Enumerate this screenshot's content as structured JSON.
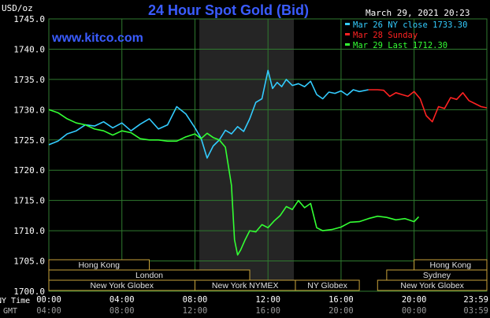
{
  "header": {
    "units": "USD/oz",
    "title": "24 Hour Spot Gold (Bid)",
    "date": "March 29, 2021 20:23",
    "website": "www.kitco.com"
  },
  "legend": [
    {
      "label": "Mar 26 NY close 1733.30",
      "color": "#33ccff"
    },
    {
      "label": "Mar 28 Sunday",
      "color": "#ff2222"
    },
    {
      "label": "Mar 29 Last 1712.30",
      "color": "#33ff33"
    }
  ],
  "markets": {
    "row1": [
      "Hong Kong",
      "Hong Kong"
    ],
    "row2": [
      "London",
      "Sydney"
    ],
    "row3": [
      "New York Globex",
      "New York NYMEX",
      "NY Globex",
      "New York Globex"
    ]
  },
  "time_axes": {
    "ny_label": "NY Time",
    "gmt_label": "GMT",
    "ny_ticks": [
      "00:00",
      "04:00",
      "08:00",
      "12:00",
      "16:00",
      "20:00",
      "23:59"
    ],
    "gmt_ticks": [
      "04:00",
      "08:00",
      "12:00",
      "16:00",
      "20:00",
      "00:00",
      "03:59"
    ]
  },
  "chart_data": {
    "type": "line",
    "ylabel": "USD/oz",
    "ylim": [
      1700,
      1745
    ],
    "yticks": [
      "1700.0",
      "1705.0",
      "1710.0",
      "1715.0",
      "1720.0",
      "1725.0",
      "1730.0",
      "1735.0",
      "1740.0",
      "1745.0"
    ],
    "xlabel": "NY Time",
    "xlim": [
      "00:00",
      "23:59"
    ],
    "grid": true,
    "colors": {
      "gridline": "#2f7a2f",
      "highlight_band": "#2a2a2a",
      "box_border": "#c8a23a"
    },
    "series": [
      {
        "name": "Mar 26 NY close 1733.30",
        "color": "#33ccff",
        "points": [
          [
            "00:00",
            1724.2
          ],
          [
            "00:30",
            1724.8
          ],
          [
            "01:00",
            1726.0
          ],
          [
            "01:30",
            1726.5
          ],
          [
            "02:00",
            1727.5
          ],
          [
            "02:30",
            1727.3
          ],
          [
            "03:00",
            1728.0
          ],
          [
            "03:30",
            1727.0
          ],
          [
            "04:00",
            1727.8
          ],
          [
            "04:30",
            1726.5
          ],
          [
            "05:00",
            1727.6
          ],
          [
            "05:30",
            1728.5
          ],
          [
            "06:00",
            1726.8
          ],
          [
            "06:30",
            1727.5
          ],
          [
            "07:00",
            1730.5
          ],
          [
            "07:30",
            1729.3
          ],
          [
            "08:00",
            1727.0
          ],
          [
            "08:20",
            1725.3
          ],
          [
            "08:40",
            1722.0
          ],
          [
            "09:00",
            1724.0
          ],
          [
            "09:20",
            1725.0
          ],
          [
            "09:40",
            1726.6
          ],
          [
            "10:00",
            1726.0
          ],
          [
            "10:20",
            1727.2
          ],
          [
            "10:40",
            1726.4
          ],
          [
            "11:00",
            1728.5
          ],
          [
            "11:20",
            1731.2
          ],
          [
            "11:40",
            1731.8
          ],
          [
            "12:00",
            1736.5
          ],
          [
            "12:15",
            1733.5
          ],
          [
            "12:30",
            1734.5
          ],
          [
            "12:45",
            1733.8
          ],
          [
            "13:00",
            1735.0
          ],
          [
            "13:20",
            1734.0
          ],
          [
            "13:40",
            1734.3
          ],
          [
            "14:00",
            1733.8
          ],
          [
            "14:20",
            1734.7
          ],
          [
            "14:40",
            1732.5
          ],
          [
            "15:00",
            1731.8
          ],
          [
            "15:20",
            1732.9
          ],
          [
            "15:40",
            1732.7
          ],
          [
            "16:00",
            1733.1
          ],
          [
            "16:20",
            1732.4
          ],
          [
            "16:40",
            1733.3
          ],
          [
            "17:00",
            1733.0
          ],
          [
            "17:30",
            1733.3
          ]
        ]
      },
      {
        "name": "Mar 28 Sunday",
        "color": "#ff2222",
        "points": [
          [
            "17:30",
            1733.3
          ],
          [
            "18:00",
            1733.3
          ],
          [
            "18:20",
            1733.2
          ],
          [
            "18:40",
            1732.2
          ],
          [
            "19:00",
            1732.8
          ],
          [
            "19:20",
            1732.5
          ],
          [
            "19:40",
            1732.2
          ],
          [
            "20:00",
            1733.0
          ],
          [
            "20:20",
            1731.8
          ],
          [
            "20:40",
            1729.0
          ],
          [
            "21:00",
            1728.0
          ],
          [
            "21:20",
            1730.5
          ],
          [
            "21:40",
            1730.2
          ],
          [
            "22:00",
            1732.0
          ],
          [
            "22:20",
            1731.7
          ],
          [
            "22:40",
            1732.8
          ],
          [
            "23:00",
            1731.5
          ],
          [
            "23:20",
            1731.0
          ],
          [
            "23:40",
            1730.5
          ],
          [
            "23:59",
            1730.3
          ]
        ]
      },
      {
        "name": "Mar 29 Last 1712.30",
        "color": "#33ff33",
        "points": [
          [
            "00:00",
            1730.0
          ],
          [
            "00:30",
            1729.5
          ],
          [
            "01:00",
            1728.5
          ],
          [
            "01:30",
            1727.8
          ],
          [
            "02:00",
            1727.5
          ],
          [
            "02:30",
            1726.8
          ],
          [
            "03:00",
            1726.5
          ],
          [
            "03:30",
            1725.8
          ],
          [
            "04:00",
            1726.5
          ],
          [
            "04:30",
            1726.2
          ],
          [
            "05:00",
            1725.2
          ],
          [
            "05:30",
            1725.0
          ],
          [
            "06:00",
            1725.0
          ],
          [
            "06:30",
            1724.8
          ],
          [
            "07:00",
            1724.8
          ],
          [
            "07:30",
            1725.5
          ],
          [
            "08:00",
            1726.0
          ],
          [
            "08:20",
            1725.2
          ],
          [
            "08:40",
            1726.1
          ],
          [
            "09:00",
            1725.4
          ],
          [
            "09:20",
            1725.0
          ],
          [
            "09:40",
            1723.8
          ],
          [
            "10:00",
            1717.5
          ],
          [
            "10:10",
            1708.5
          ],
          [
            "10:20",
            1706.0
          ],
          [
            "10:30",
            1706.8
          ],
          [
            "10:45",
            1708.5
          ],
          [
            "11:00",
            1710.0
          ],
          [
            "11:20",
            1709.8
          ],
          [
            "11:40",
            1711.0
          ],
          [
            "12:00",
            1710.5
          ],
          [
            "12:20",
            1711.6
          ],
          [
            "12:40",
            1712.5
          ],
          [
            "13:00",
            1714.0
          ],
          [
            "13:20",
            1713.5
          ],
          [
            "13:40",
            1715.0
          ],
          [
            "14:00",
            1713.8
          ],
          [
            "14:20",
            1714.5
          ],
          [
            "14:40",
            1710.5
          ],
          [
            "15:00",
            1710.0
          ],
          [
            "15:30",
            1710.2
          ],
          [
            "16:00",
            1710.6
          ],
          [
            "16:30",
            1711.4
          ],
          [
            "17:00",
            1711.5
          ],
          [
            "17:30",
            1712.0
          ],
          [
            "18:00",
            1712.4
          ],
          [
            "18:30",
            1712.2
          ],
          [
            "19:00",
            1711.8
          ],
          [
            "19:30",
            1712.0
          ],
          [
            "20:00",
            1711.5
          ],
          [
            "20:15",
            1712.3
          ]
        ]
      }
    ]
  }
}
